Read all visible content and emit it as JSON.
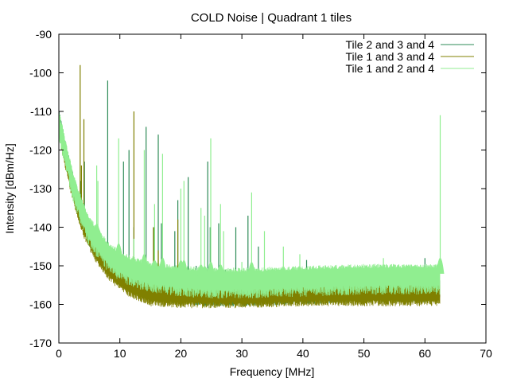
{
  "chart_data": {
    "type": "line",
    "title": "COLD Noise | Quadrant 1 tiles",
    "xlabel": "Frequency [MHz]",
    "ylabel": "Intensity [dBm/Hz]",
    "xlim": [
      0,
      70
    ],
    "ylim": [
      -170,
      -90
    ],
    "xticks": [
      "0",
      "10",
      "20",
      "30",
      "40",
      "50",
      "60",
      "70"
    ],
    "yticks": [
      "-170",
      "-160",
      "-150",
      "-140",
      "-130",
      "-120",
      "-110",
      "-100",
      "-90"
    ],
    "grid": false,
    "legend_position": "top-right",
    "x_end": 62.5,
    "series": [
      {
        "name": "Tile 2 and 3 and 4",
        "color": "#2e8b57",
        "baseline": [
          [
            0,
            -112
          ],
          [
            1,
            -120
          ],
          [
            2,
            -127
          ],
          [
            3,
            -133
          ],
          [
            4,
            -138
          ],
          [
            5,
            -141.5
          ],
          [
            6,
            -144.5
          ],
          [
            8,
            -148.5
          ],
          [
            10,
            -151.5
          ],
          [
            12,
            -153.5
          ],
          [
            15,
            -155.5
          ],
          [
            20,
            -156.5
          ],
          [
            25,
            -157
          ],
          [
            30,
            -157
          ],
          [
            40,
            -156.5
          ],
          [
            50,
            -156
          ],
          [
            62.5,
            -156
          ]
        ],
        "band_low": 3.5,
        "band_high": 3.0,
        "spikes": [
          [
            3.6,
            -128
          ],
          [
            4.2,
            -123
          ],
          [
            8.0,
            -102
          ],
          [
            10.6,
            -123
          ],
          [
            11.5,
            -120
          ],
          [
            12.3,
            -140
          ],
          [
            14.3,
            -114
          ],
          [
            15.6,
            -140
          ],
          [
            16.3,
            -116
          ],
          [
            16.8,
            -139
          ],
          [
            19.0,
            -141
          ],
          [
            19.5,
            -133
          ],
          [
            21.2,
            -127
          ],
          [
            22.5,
            -150
          ],
          [
            24.4,
            -123
          ],
          [
            24.8,
            -140
          ],
          [
            26.2,
            -139
          ],
          [
            27.3,
            -151
          ],
          [
            29.0,
            -140
          ],
          [
            31.0,
            -137
          ],
          [
            31.6,
            -150
          ],
          [
            32.7,
            -145
          ],
          [
            40.6,
            -148.5
          ],
          [
            44.3,
            -152
          ],
          [
            47.4,
            -151
          ],
          [
            49.7,
            -150.5
          ],
          [
            52.5,
            -152
          ],
          [
            60.0,
            -148
          ]
        ]
      },
      {
        "name": "Tile 1 and 3 and 4",
        "color": "#808000",
        "baseline": [
          [
            0,
            -113
          ],
          [
            1,
            -121
          ],
          [
            2,
            -128
          ],
          [
            3,
            -134
          ],
          [
            4,
            -139
          ],
          [
            5,
            -142.5
          ],
          [
            6,
            -145.5
          ],
          [
            8,
            -150
          ],
          [
            10,
            -153
          ],
          [
            12,
            -155
          ],
          [
            15,
            -157
          ],
          [
            20,
            -157.5
          ],
          [
            25,
            -157.5
          ],
          [
            30,
            -157.5
          ],
          [
            40,
            -157
          ],
          [
            50,
            -157
          ],
          [
            62.5,
            -157
          ]
        ],
        "band_low": 3.5,
        "band_high": 3.0,
        "spikes": [
          [
            3.5,
            -98
          ],
          [
            3.7,
            -124
          ],
          [
            4.1,
            -112
          ],
          [
            6.1,
            -140
          ],
          [
            12.3,
            -110
          ],
          [
            15.5,
            -140
          ],
          [
            16.3,
            -146
          ],
          [
            19.5,
            -138
          ],
          [
            21.5,
            -152
          ],
          [
            26.5,
            -152
          ],
          [
            29.9,
            -153
          ],
          [
            31.6,
            -151
          ],
          [
            43.5,
            -154
          ],
          [
            53.2,
            -155.5
          ]
        ]
      },
      {
        "name": "Tile 1 and 2 and 4",
        "color": "#90ee90",
        "baseline": [
          [
            0,
            -112
          ],
          [
            1,
            -119
          ],
          [
            2,
            -126
          ],
          [
            3,
            -131.5
          ],
          [
            4,
            -136
          ],
          [
            5,
            -139.5
          ],
          [
            6,
            -142
          ],
          [
            8,
            -146
          ],
          [
            10,
            -148.5
          ],
          [
            12,
            -150
          ],
          [
            15,
            -151.5
          ],
          [
            20,
            -152.5
          ],
          [
            25,
            -153
          ],
          [
            30,
            -153
          ],
          [
            40,
            -152.5
          ],
          [
            50,
            -152
          ],
          [
            62.5,
            -152
          ]
        ],
        "band_low": 5.5,
        "band_high": 2.5,
        "spikes": [
          [
            6.4,
            -128
          ],
          [
            6.2,
            -124
          ],
          [
            9.8,
            -117
          ],
          [
            12.3,
            -143
          ],
          [
            14.0,
            -120
          ],
          [
            15.7,
            -134
          ],
          [
            17.0,
            -121
          ],
          [
            20.0,
            -130
          ],
          [
            20.5,
            -128
          ],
          [
            23.3,
            -135
          ],
          [
            23.9,
            -137
          ],
          [
            24.9,
            -117
          ],
          [
            26.5,
            -134
          ],
          [
            27.0,
            -141
          ],
          [
            31.6,
            -131
          ],
          [
            30.0,
            -149
          ],
          [
            33.7,
            -141
          ],
          [
            36.8,
            -145
          ],
          [
            39.5,
            -147
          ],
          [
            53.2,
            -148
          ],
          [
            62.5,
            -111
          ]
        ]
      }
    ]
  }
}
